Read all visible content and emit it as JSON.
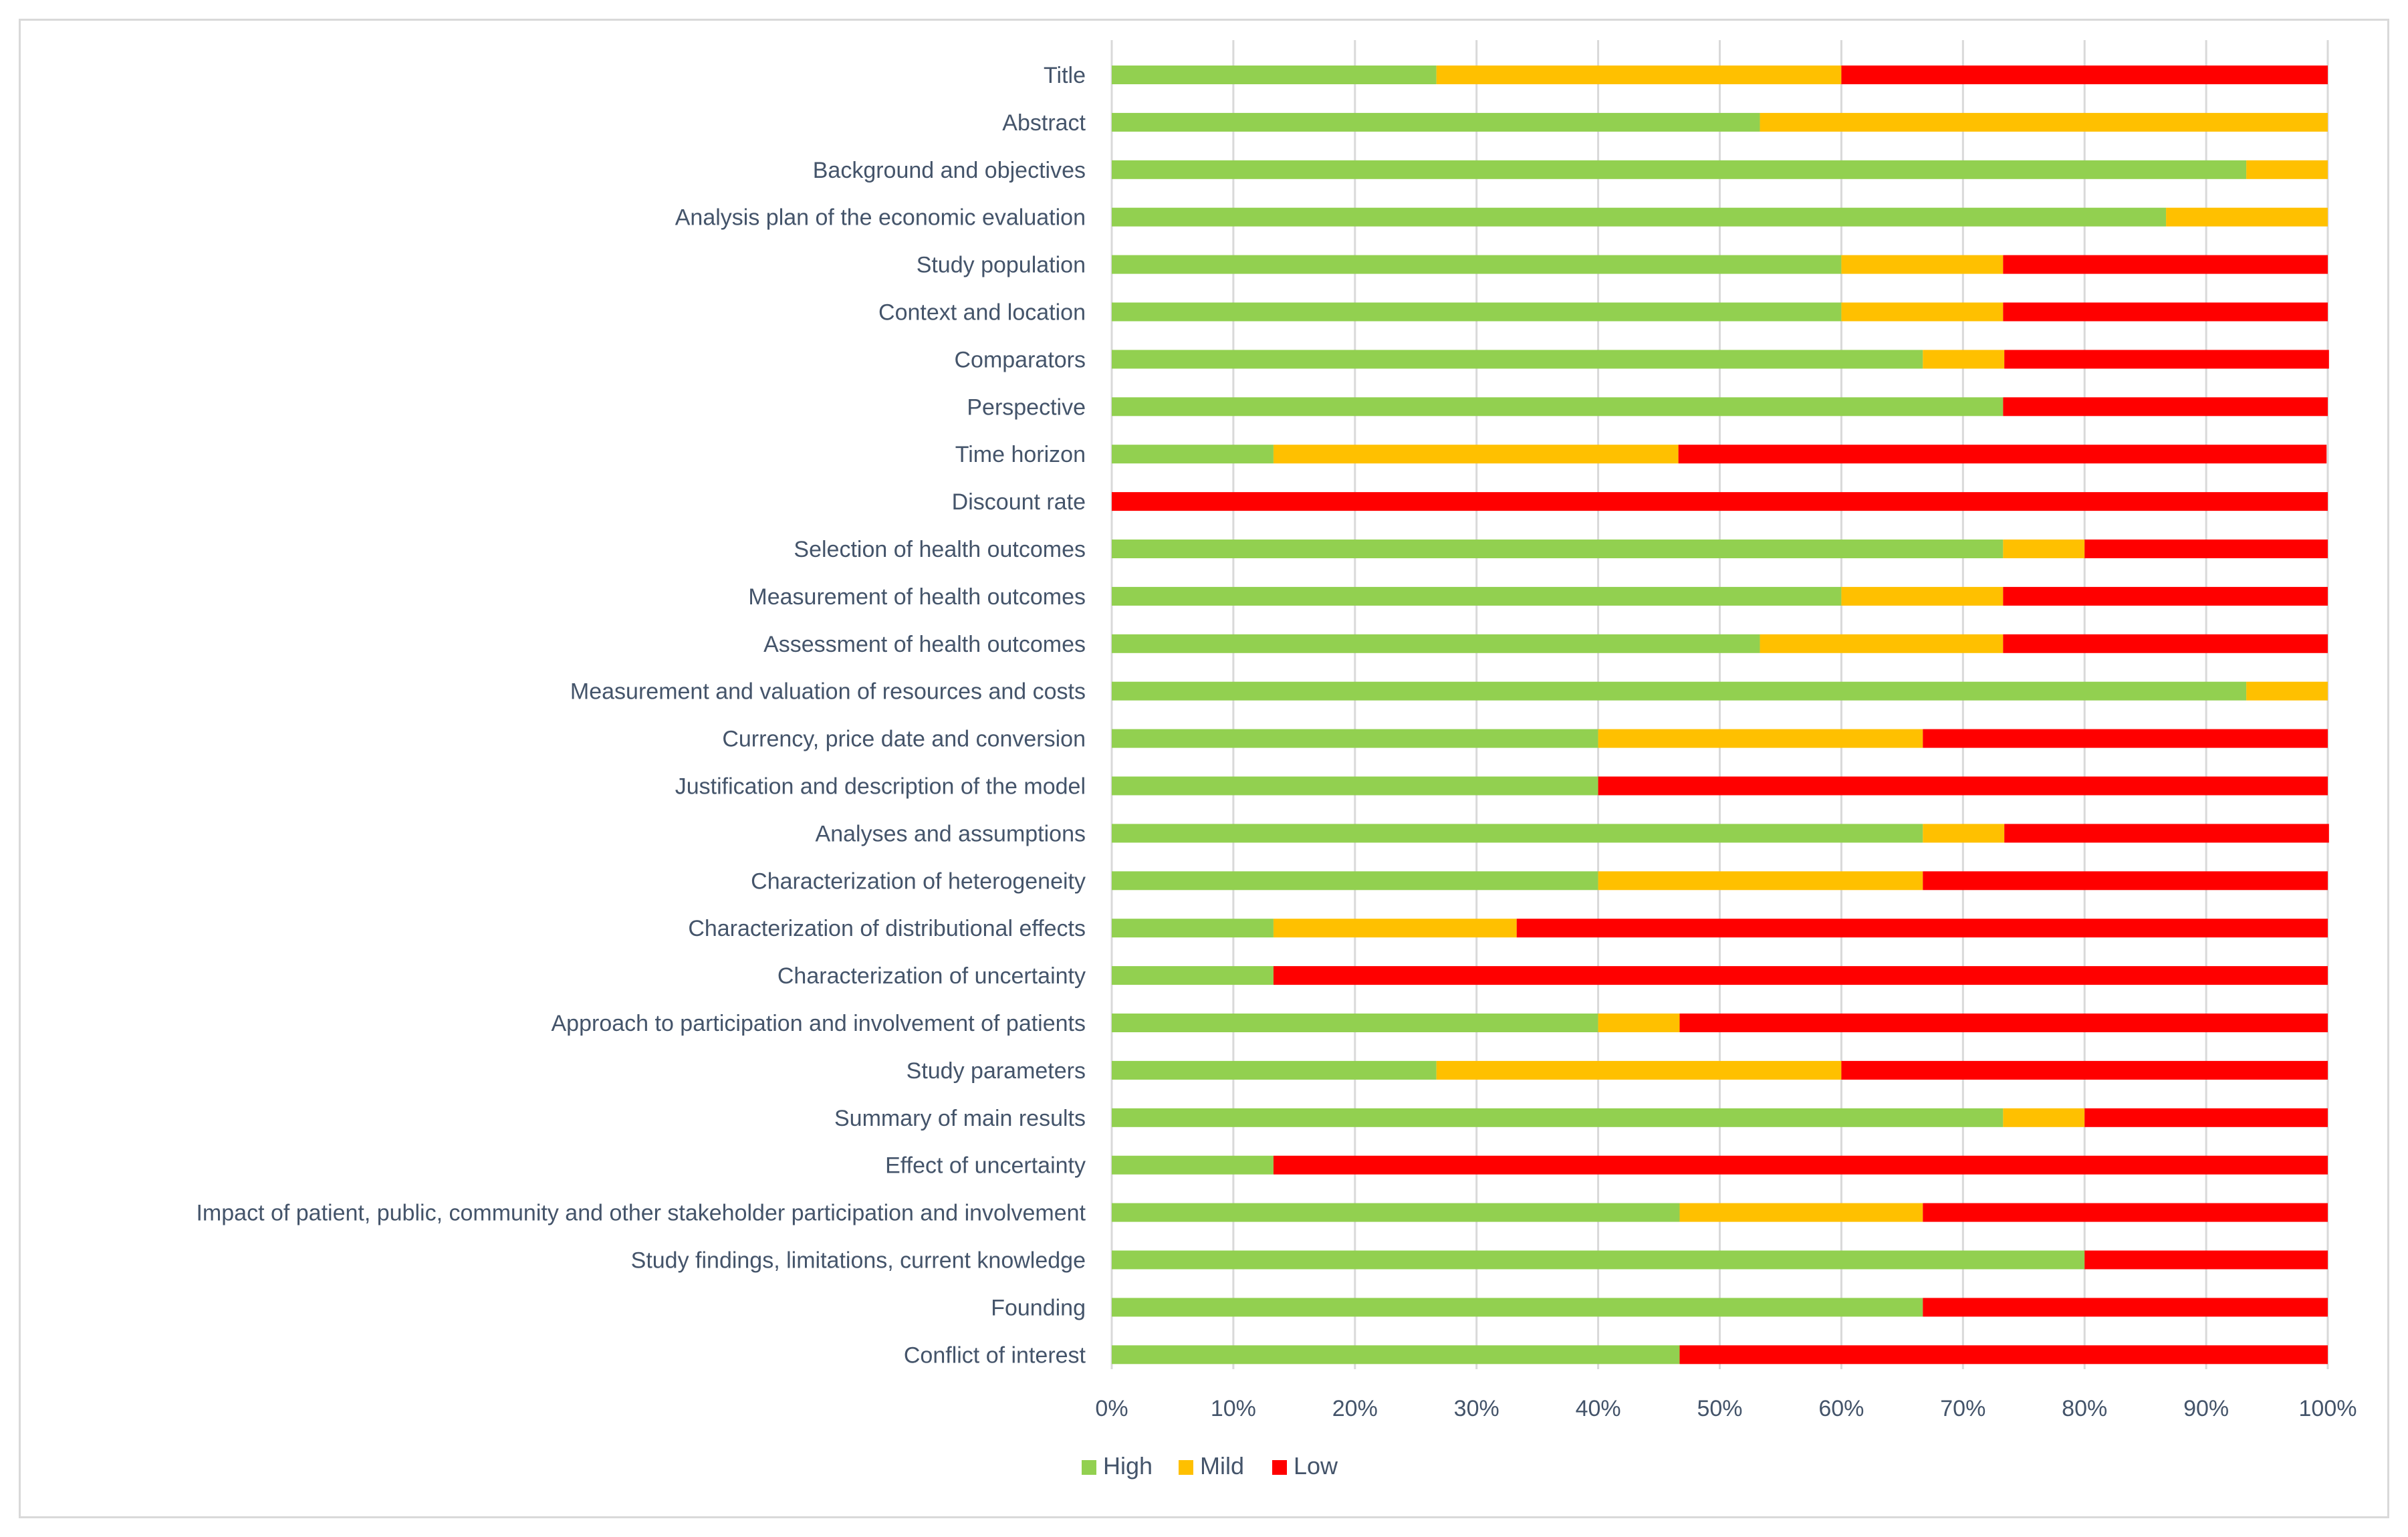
{
  "chart_data": {
    "type": "bar",
    "orientation": "horizontal",
    "stacked": "percent",
    "title": "",
    "xlabel": "",
    "ylabel": "",
    "categories": [
      "Title",
      "Abstract",
      "Background and objectives",
      "Analysis plan of the economic evaluation",
      "Study population",
      "Context and location",
      "Comparators",
      "Perspective",
      "Time horizon",
      "Discount rate",
      "Selection of health outcomes",
      "Measurement of health outcomes",
      "Assessment of health outcomes",
      "Measurement and valuation of resources and costs",
      "Currency, price date and conversion",
      "Justification and description of the model",
      "Analyses and assumptions",
      "Characterization of heterogeneity",
      "Characterization of distributional effects",
      "Characterization of uncertainty",
      "Approach to participation and involvement of patients",
      "Study parameters",
      "Summary of main results",
      "Effect of uncertainty",
      "Impact of patient, public, community and other stakeholder participation and involvement",
      "Study findings, limitations, current knowledge",
      "Founding",
      "Conflict of interest"
    ],
    "series": [
      {
        "name": "High",
        "color": "#92d050",
        "values": [
          26.7,
          53.3,
          93.3,
          86.7,
          60.0,
          60.0,
          66.7,
          73.3,
          13.3,
          0.0,
          73.3,
          60.0,
          53.3,
          93.3,
          40.0,
          40.0,
          66.7,
          40.0,
          13.3,
          13.3,
          40.0,
          26.7,
          73.3,
          13.3,
          46.7,
          80.0,
          66.7,
          46.7
        ]
      },
      {
        "name": "Mild",
        "color": "#ffc000",
        "values": [
          33.3,
          46.7,
          6.7,
          13.3,
          13.3,
          13.3,
          6.7,
          0.0,
          33.3,
          0.0,
          6.7,
          13.3,
          20.0,
          6.7,
          26.7,
          0.0,
          6.7,
          26.7,
          20.0,
          0.0,
          6.7,
          33.3,
          6.7,
          0.0,
          20.0,
          0.0,
          0.0,
          0.0
        ]
      },
      {
        "name": "Low",
        "color": "#ff0000",
        "values": [
          40.0,
          0.0,
          0.0,
          0.0,
          26.7,
          26.7,
          26.7,
          26.7,
          53.3,
          100.0,
          20.0,
          26.7,
          26.7,
          0.0,
          33.3,
          60.0,
          26.7,
          33.3,
          66.7,
          86.7,
          53.3,
          40.0,
          20.0,
          86.7,
          33.3,
          20.0,
          33.3,
          53.3
        ]
      }
    ],
    "xlim": [
      0,
      100
    ],
    "x_ticks": [
      "0%",
      "10%",
      "20%",
      "30%",
      "40%",
      "50%",
      "60%",
      "70%",
      "80%",
      "90%",
      "100%"
    ],
    "grid": true,
    "legend_position": "bottom"
  }
}
